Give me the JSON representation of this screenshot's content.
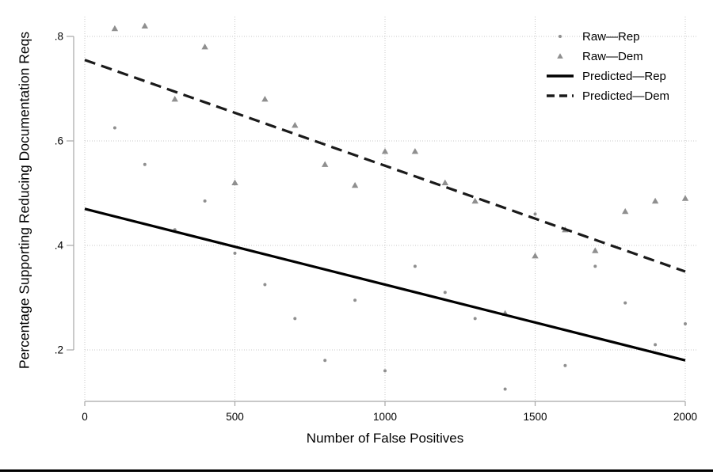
{
  "figure": {
    "background": "#ffffff",
    "plot_bg": "#ffffff",
    "grid_color": "#c8c8c8",
    "spine_color": "#a6a6a6",
    "marker_color": "#8f8f8f",
    "text_color": "#000000",
    "bottom_rule_color": "#000000"
  },
  "chart_data": {
    "type": "scatter",
    "title": "",
    "xlabel": "Number of False Positives",
    "ylabel": "Percentage Supporting Reducing Documentation Reqs",
    "xlim": [
      0,
      2000
    ],
    "ylim": [
      0.1,
      0.84
    ],
    "x_ticks": [
      0,
      500,
      1000,
      1500,
      2000
    ],
    "x_tick_labels": [
      "0",
      "500",
      "1000",
      "1500",
      "2000"
    ],
    "y_ticks": [
      0.2,
      0.4,
      0.6,
      0.8
    ],
    "y_tick_labels": [
      ".2",
      ".4",
      ".6",
      ".8"
    ],
    "grid": true,
    "grid_style": "dotted",
    "legend_position": "top-right-inside",
    "series": [
      {
        "name": "Raw—Rep",
        "kind": "scatter",
        "marker": "dot",
        "color": "#8f8f8f",
        "x": [
          100,
          200,
          300,
          400,
          500,
          600,
          700,
          800,
          900,
          1000,
          1100,
          1200,
          1300,
          1400,
          1500,
          1600,
          1700,
          1800,
          1900,
          2000
        ],
        "y": [
          0.625,
          0.555,
          0.43,
          0.485,
          0.385,
          0.325,
          0.26,
          0.18,
          0.295,
          0.16,
          0.36,
          0.31,
          0.26,
          0.125,
          0.46,
          0.17,
          0.36,
          0.29,
          0.21,
          0.25
        ]
      },
      {
        "name": "Raw—Dem",
        "kind": "scatter",
        "marker": "triangle",
        "color": "#8f8f8f",
        "x": [
          100,
          200,
          300,
          400,
          500,
          600,
          700,
          800,
          900,
          1000,
          1100,
          1200,
          1300,
          1400,
          1500,
          1600,
          1700,
          1800,
          1900,
          2000
        ],
        "y": [
          0.815,
          0.82,
          0.68,
          0.78,
          0.52,
          0.68,
          0.63,
          0.555,
          0.515,
          0.58,
          0.58,
          0.52,
          0.485,
          0.27,
          0.38,
          0.43,
          0.39,
          0.465,
          0.485,
          0.49
        ]
      },
      {
        "name": "Predicted—Rep",
        "kind": "line",
        "style": "solid",
        "color": "#000000",
        "x": [
          0,
          2000
        ],
        "y": [
          0.47,
          0.18
        ]
      },
      {
        "name": "Predicted—Dem",
        "kind": "line",
        "style": "dashed",
        "color": "#1a1a1a",
        "x": [
          0,
          2000
        ],
        "y": [
          0.755,
          0.35
        ]
      }
    ]
  }
}
